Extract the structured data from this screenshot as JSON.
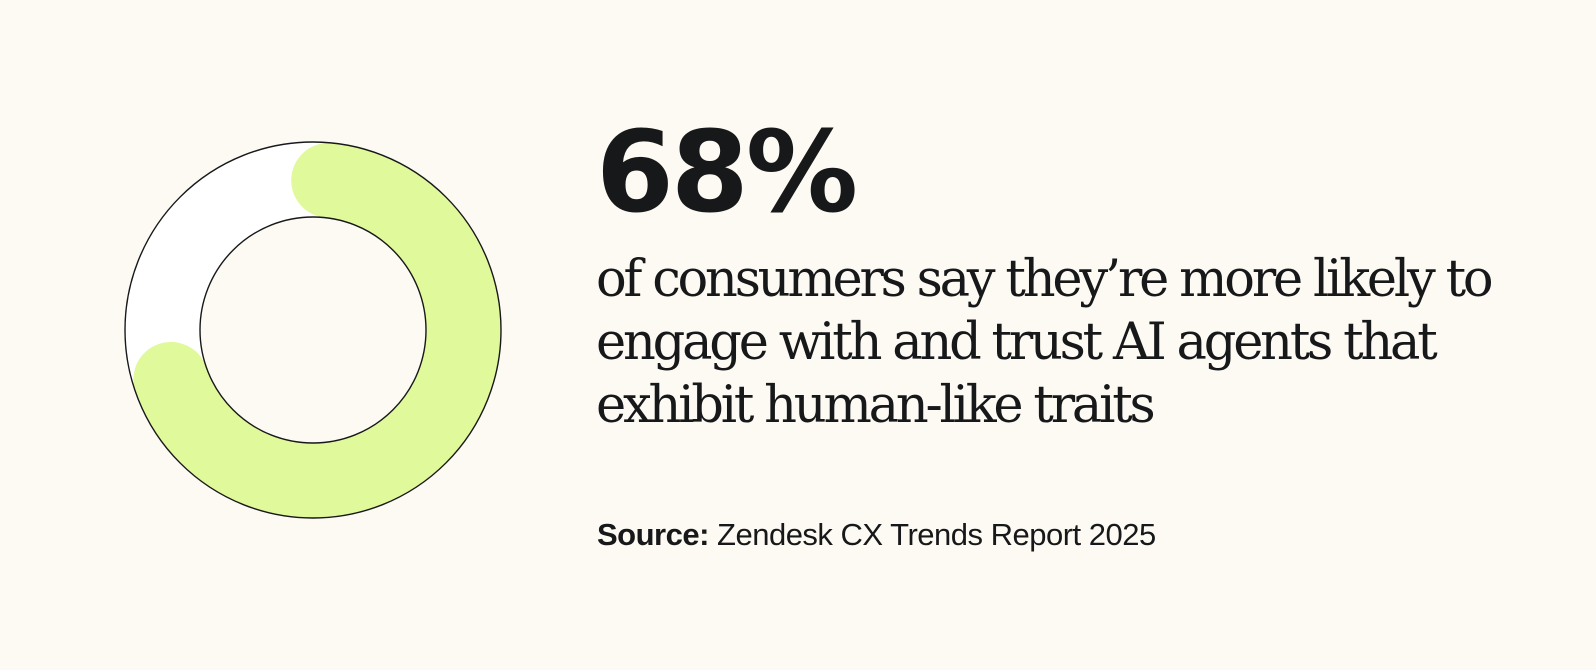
{
  "stat": {
    "value": "68%",
    "description": "of consumers say they’re more likely to engage with and trust AI agents that exhibit human-like traits"
  },
  "source": {
    "label": "Source:",
    "text": " Zendesk CX Trends Report 2025"
  },
  "chart_data": {
    "type": "pie",
    "title": "",
    "slices": [
      {
        "value": 68,
        "color": "#e0f99a"
      },
      {
        "value": 32,
        "color": "#ffffff"
      }
    ],
    "legend": "none"
  },
  "colors": {
    "background": "#fdf9f3",
    "accent": "#e0f99a",
    "text": "#17181a",
    "outline": "#17181a"
  }
}
